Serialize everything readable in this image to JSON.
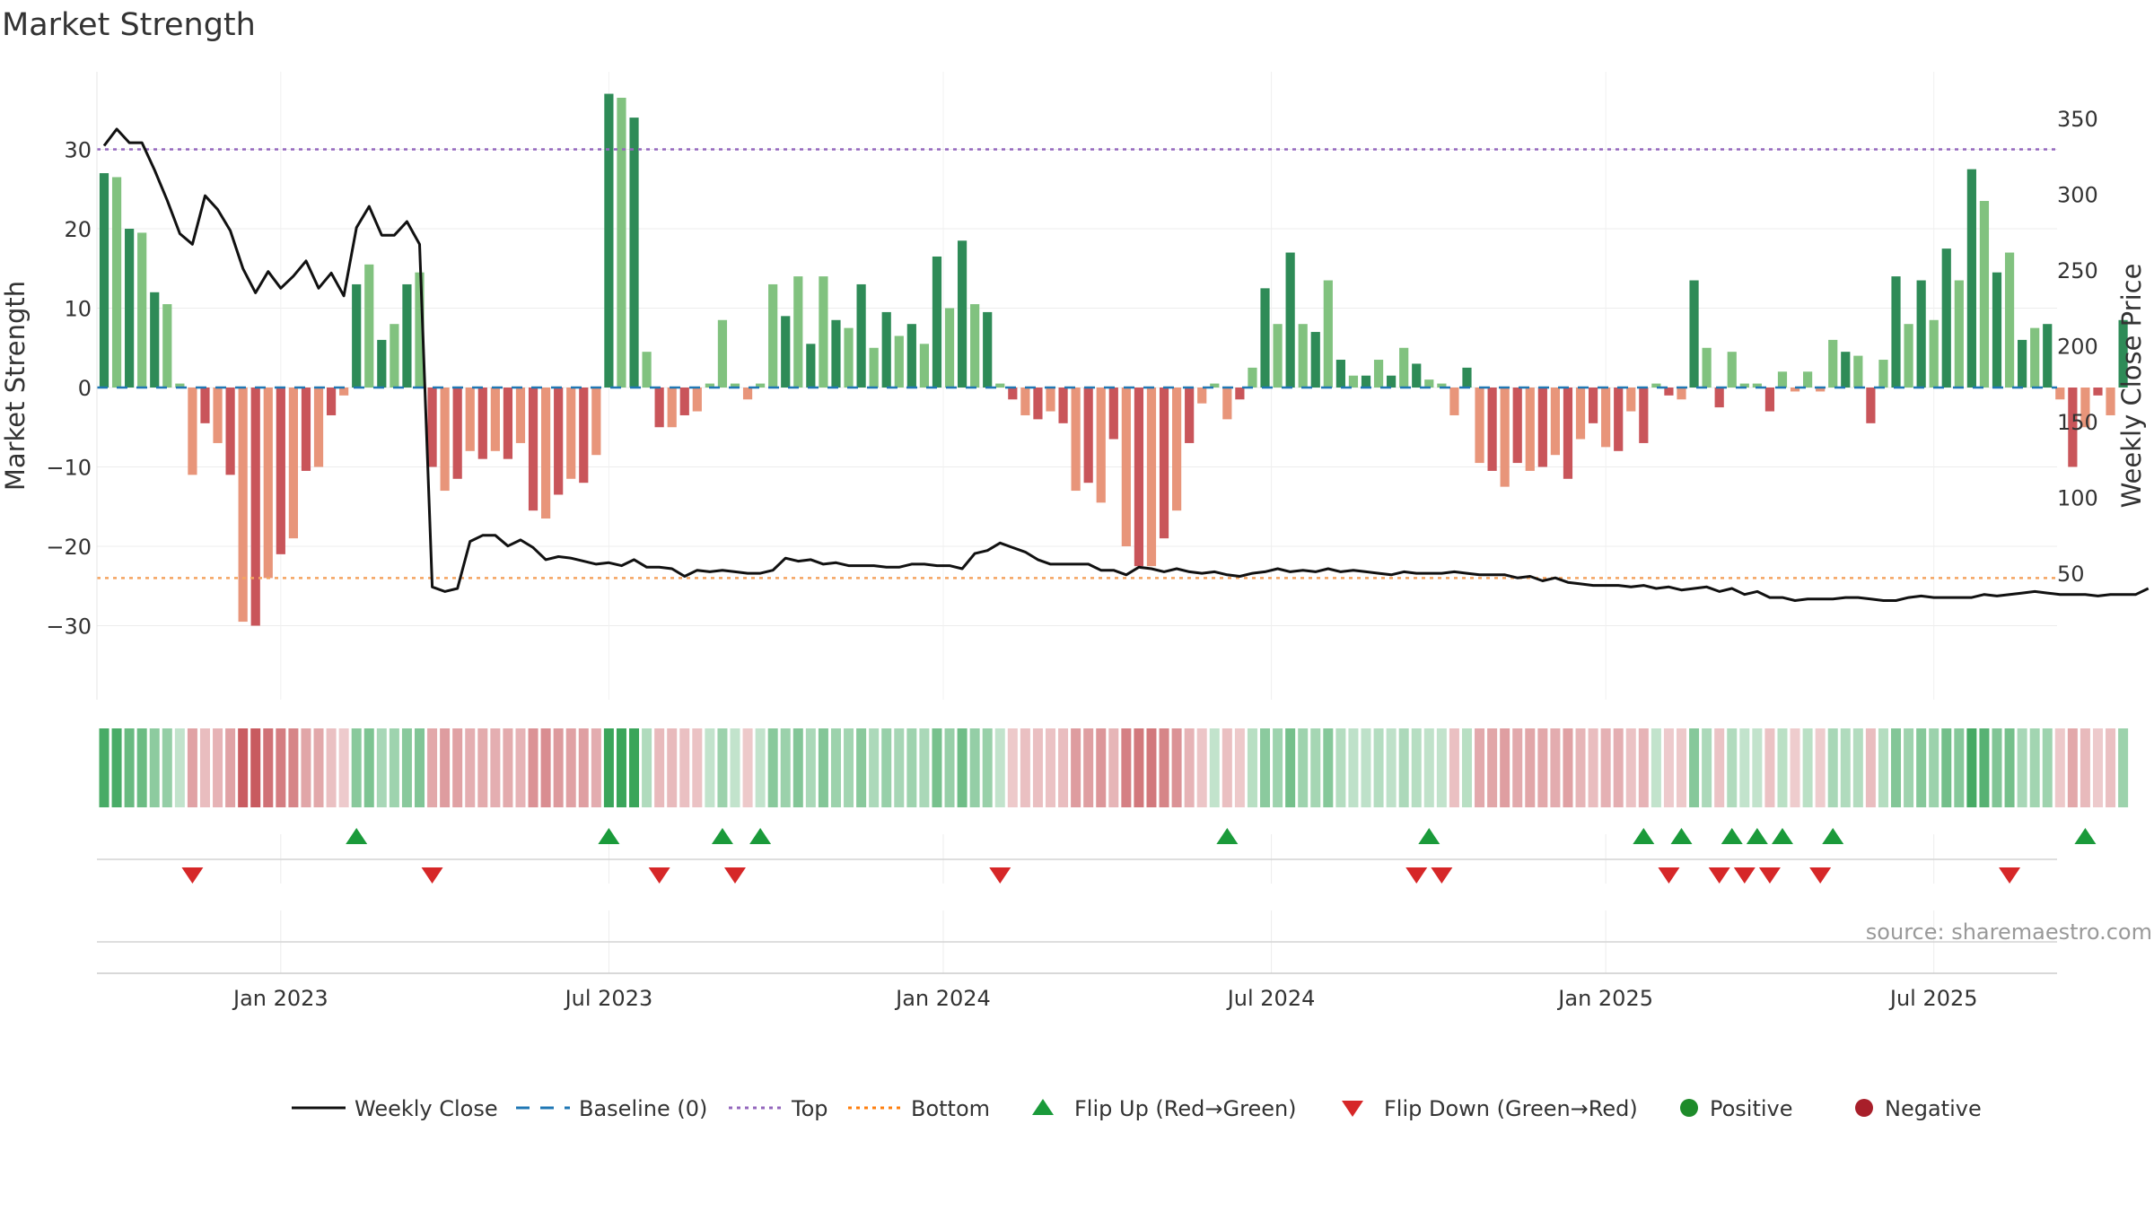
{
  "chart_data": {
    "type": "bar",
    "title": "Market Strength",
    "ylabel_left": "Market Strength",
    "ylabel_right": "Weekly Close Price",
    "ylim_left": [
      -39,
      39
    ],
    "ylim_right": [
      11,
      366
    ],
    "yticks_left": [
      30,
      20,
      10,
      0,
      -10,
      -20,
      -30
    ],
    "ytick_labels_left": [
      "30",
      "20",
      "10",
      "0",
      "−10",
      "−20",
      "−30"
    ],
    "yticks_right": [
      350,
      300,
      250,
      200,
      150,
      100,
      50
    ],
    "ytick_labels_right": [
      "350",
      "300",
      "250",
      "200",
      "150",
      "100",
      "50"
    ],
    "top_line": 30,
    "bottom_line": -24,
    "grid": true,
    "legend_position": "bottom",
    "source": "source: sharemaestro.com",
    "x_ticks": [
      {
        "label": "Jan 2023",
        "week": 14
      },
      {
        "label": "Jul 2023",
        "week": 40
      },
      {
        "label": "Jan 2024",
        "week": 66.5
      },
      {
        "label": "Jul 2024",
        "week": 92.5
      },
      {
        "label": "Jan 2025",
        "week": 119
      },
      {
        "label": "Jul 2025",
        "week": 145
      }
    ],
    "strength": [
      27,
      26.5,
      20,
      19.5,
      12,
      10.5,
      0.5,
      -11,
      -4.5,
      -7,
      -11,
      -29.5,
      -30,
      -24,
      -21,
      -19,
      -10.5,
      -10,
      -3.5,
      -1,
      13,
      15.5,
      6,
      8,
      13,
      14.5,
      -10,
      -13,
      -11.5,
      -8,
      -9,
      -8,
      -9,
      -7,
      -15.5,
      -16.5,
      -13.5,
      -11.5,
      -12,
      -8.5,
      37,
      36.5,
      34,
      4.5,
      -5,
      -5,
      -3.5,
      -3,
      0.5,
      8.5,
      0.5,
      -1.5,
      0.5,
      13,
      9,
      14,
      5.5,
      14,
      8.5,
      7.5,
      13,
      5,
      9.5,
      6.5,
      8,
      5.5,
      16.5,
      10,
      18.5,
      10.5,
      9.5,
      0.5,
      -1.5,
      -3.5,
      -4,
      -3,
      -4.5,
      -13,
      -12,
      -14.5,
      -6.5,
      -20,
      -22.5,
      -22.5,
      -19,
      -15.5,
      -7,
      -2,
      0.5,
      -4,
      -1.5,
      2.5,
      12.5,
      8,
      17,
      8,
      7,
      13.5,
      3.5,
      1.5,
      1.5,
      3.5,
      1.5,
      5,
      3,
      1,
      0.5,
      -3.5,
      2.5,
      -9.5,
      -10.5,
      -12.5,
      -9.5,
      -10.5,
      -10,
      -8.5,
      -11.5,
      -6.5,
      -4.5,
      -7.5,
      -8,
      -3,
      -7,
      0.5,
      -1,
      -1.5,
      13.5,
      5,
      -2.5,
      4.5,
      0.5,
      0.5,
      -3,
      2,
      -0.5,
      2,
      -0.5,
      6,
      4.5,
      4,
      -4.5,
      3.5,
      14,
      8,
      13.5,
      8.5,
      17.5,
      13.5,
      27.5,
      23.5,
      14.5,
      17,
      6,
      7.5,
      8,
      -1.5,
      -10,
      -5,
      -1,
      -3.5,
      8.5
    ],
    "price": [
      332,
      343,
      334,
      334,
      316,
      296,
      274,
      267,
      299,
      290,
      276,
      251,
      235,
      249,
      238,
      246,
      256,
      238,
      248,
      233,
      278,
      292,
      273,
      273,
      282,
      267,
      41,
      38,
      40,
      71,
      75,
      75,
      68,
      72,
      67,
      59,
      61,
      60,
      58,
      56,
      57,
      55,
      59,
      54,
      54,
      53,
      48,
      52,
      51,
      52,
      51,
      50,
      50,
      52,
      60,
      58,
      59,
      56,
      57,
      55,
      55,
      55,
      54,
      54,
      56,
      56,
      55,
      55,
      53,
      63,
      65,
      70,
      67,
      64,
      59,
      56,
      56,
      56,
      56,
      52,
      52,
      49,
      54,
      53,
      51,
      53,
      51,
      50,
      51,
      49,
      48,
      50,
      51,
      53,
      51,
      52,
      51,
      53,
      51,
      52,
      51,
      50,
      49,
      51,
      50,
      50,
      50,
      51,
      50,
      49,
      49,
      49,
      47,
      48,
      45,
      47,
      44,
      43,
      42,
      42,
      42,
      41,
      42,
      40,
      41,
      39,
      40,
      41,
      38,
      40,
      36,
      38,
      34,
      34,
      32,
      33,
      33,
      33,
      34,
      34,
      33,
      32,
      32,
      34,
      35,
      34,
      34,
      34,
      34,
      36,
      35,
      36,
      37,
      38,
      37,
      36,
      36,
      36,
      35,
      36,
      36,
      36,
      40
    ],
    "heat_strength": [
      27,
      26.5,
      20,
      19.5,
      12,
      10.5,
      0.5,
      -11,
      -4.5,
      -7,
      -11,
      -29.5,
      -30,
      -24,
      -21,
      -19,
      -10.5,
      -10,
      -3.5,
      -1,
      13,
      15.5,
      6,
      8,
      13,
      14.5,
      -10,
      -13,
      -11.5,
      -8,
      -9,
      -8,
      -9,
      -7,
      -15.5,
      -16.5,
      -13.5,
      -11.5,
      -12,
      -8.5,
      37,
      36.5,
      34,
      4.5,
      -5,
      -5,
      -3.5,
      -3,
      0.5,
      8.5,
      0.5,
      -1.5,
      0.5,
      13,
      9,
      14,
      5.5,
      14,
      8.5,
      7.5,
      13,
      5,
      9.5,
      6.5,
      8,
      5.5,
      16.5,
      10,
      18.5,
      10.5,
      9.5,
      0.5,
      -1.5,
      -3.5,
      -4,
      -3,
      -4.5,
      -13,
      -12,
      -14.5,
      -6.5,
      -20,
      -22.5,
      -22.5,
      -19,
      -15.5,
      -7,
      -2,
      0.5,
      -4,
      -1.5,
      2.5,
      12.5,
      8,
      17,
      8,
      7,
      13.5,
      3.5,
      1.5,
      1.5,
      3.5,
      1.5,
      5,
      3,
      1,
      0.5,
      -3.5,
      2.5,
      -9.5,
      -10.5,
      -12.5,
      -9.5,
      -10.5,
      -10,
      -8.5,
      -11.5,
      -6.5,
      -4.5,
      -7.5,
      -8,
      -3,
      -7,
      0.5,
      -1,
      -1.5,
      13.5,
      5,
      -2.5,
      4.5,
      0.5,
      0.5,
      -3,
      2,
      -0.5,
      2,
      -0.5,
      6,
      4.5,
      4,
      -4.5,
      3.5,
      14,
      8,
      13.5,
      8.5,
      17.5,
      13.5,
      27.5,
      23.5,
      14.5,
      17,
      6,
      7.5,
      8,
      -1.5,
      -10,
      -5,
      -1,
      -3.5,
      8.5
    ],
    "flips_up": [
      20,
      40,
      49,
      52,
      89,
      105,
      122,
      125,
      129,
      131,
      133,
      137,
      157
    ],
    "flips_down": [
      7,
      26,
      44,
      50,
      71,
      104,
      106,
      124,
      128,
      130,
      132,
      136,
      151
    ],
    "legend": [
      {
        "label": "Weekly Close",
        "kind": "line",
        "color": "#111111"
      },
      {
        "label": "Baseline (0)",
        "kind": "dash",
        "color": "#1f77b4"
      },
      {
        "label": "Top",
        "kind": "dot",
        "color": "#9467bd"
      },
      {
        "label": "Bottom",
        "kind": "dot",
        "color": "#ff7f0e"
      },
      {
        "label": "Flip Up (Red→Green)",
        "kind": "tri-up",
        "color": "#1a9a3a"
      },
      {
        "label": "Flip Down (Green→Red)",
        "kind": "tri-down",
        "color": "#d62728"
      },
      {
        "label": "Positive",
        "kind": "circle",
        "color": "#1e8b2a"
      },
      {
        "label": "Negative",
        "kind": "circle",
        "color": "#a81f2a"
      }
    ],
    "colors": {
      "pos_strong": "#2e8b57",
      "pos_weak": "#81c27f",
      "neg_strong": "#c9555a",
      "neg_weak": "#e8957a",
      "price_line": "#111111",
      "baseline": "#1f77b4",
      "top_line": "#9467bd",
      "bottom_line": "#f4a460",
      "flip_up": "#1a9a3a",
      "flip_down": "#d62728"
    }
  }
}
